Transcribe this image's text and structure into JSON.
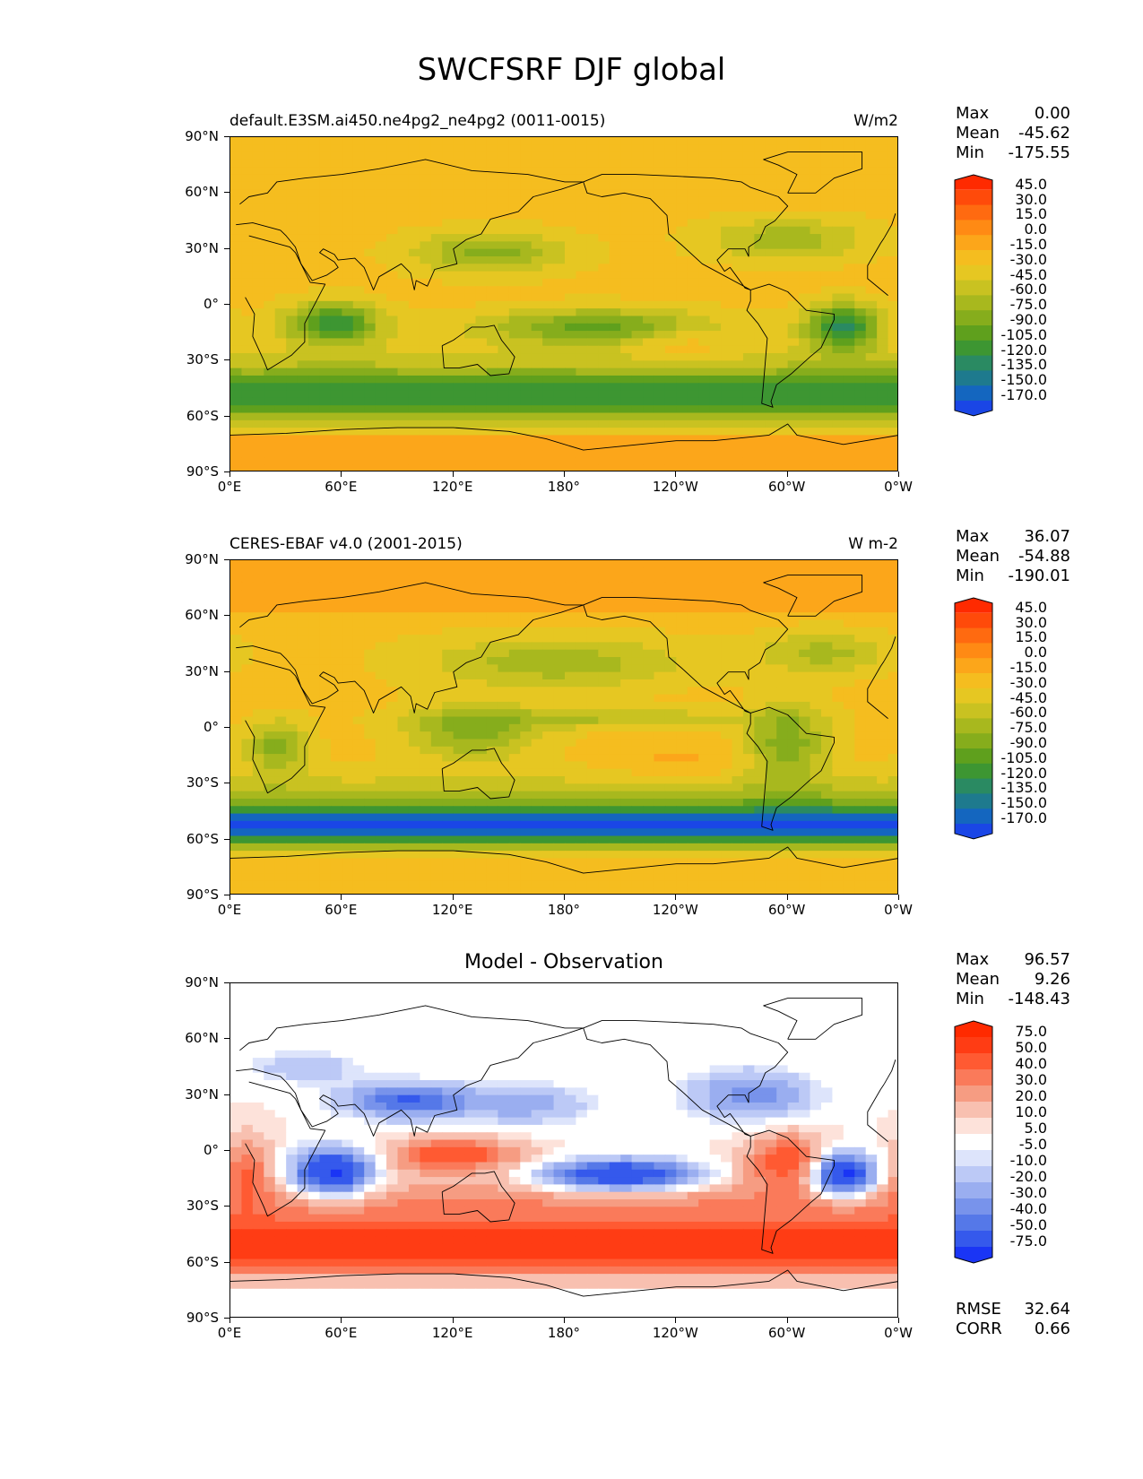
{
  "figure": {
    "title": "SWCFSRF DJF global"
  },
  "x_ticks": [
    "0°E",
    "60°E",
    "120°E",
    "180°",
    "120°W",
    "60°W",
    "0°W"
  ],
  "y_ticks": [
    "90°N",
    "60°N",
    "30°N",
    "0°",
    "30°S",
    "60°S",
    "90°S"
  ],
  "panels": [
    {
      "left_title": "default.E3SM.ai450.ne4pg2_ne4pg2 (0011-0015)",
      "right_title": "W/m2",
      "center_title": "",
      "stats": {
        "max_label": "Max",
        "max": "0.00",
        "mean_label": "Mean",
        "mean": "-45.62",
        "min_label": "Min",
        "min": "-175.55"
      },
      "colorbar": {
        "labels": [
          "45.0",
          "30.0",
          "15.0",
          "0.0",
          "-15.0",
          "-30.0",
          "-45.0",
          "-60.0",
          "-75.0",
          "-90.0",
          "-105.0",
          "-120.0",
          "-135.0",
          "-150.0",
          "-170.0"
        ],
        "colors": [
          "#ff2a00",
          "#ff4a0a",
          "#ff6a10",
          "#ff8a14",
          "#fca61a",
          "#f5bd1f",
          "#e6c722",
          "#c9c221",
          "#a8b81e",
          "#86ad1c",
          "#5fa01d",
          "#3d9632",
          "#2a8a62",
          "#1e7a8e",
          "#1466bf",
          "#1a46e6"
        ]
      }
    },
    {
      "left_title": "CERES-EBAF v4.0 (2001-2015)",
      "right_title": "W m-2",
      "center_title": "",
      "stats": {
        "max_label": "Max",
        "max": "36.07",
        "mean_label": "Mean",
        "mean": "-54.88",
        "min_label": "Min",
        "min": "-190.01"
      },
      "colorbar": {
        "labels": [
          "45.0",
          "30.0",
          "15.0",
          "0.0",
          "-15.0",
          "-30.0",
          "-45.0",
          "-60.0",
          "-75.0",
          "-90.0",
          "-105.0",
          "-120.0",
          "-135.0",
          "-150.0",
          "-170.0"
        ],
        "colors": [
          "#ff2a00",
          "#ff4a0a",
          "#ff6a10",
          "#ff8a14",
          "#fca61a",
          "#f5bd1f",
          "#e6c722",
          "#c9c221",
          "#a8b81e",
          "#86ad1c",
          "#5fa01d",
          "#3d9632",
          "#2a8a62",
          "#1e7a8e",
          "#1466bf",
          "#1a46e6"
        ]
      }
    },
    {
      "left_title": "",
      "right_title": "",
      "center_title": "Model - Observation",
      "stats": {
        "max_label": "Max",
        "max": "96.57",
        "mean_label": "Mean",
        "mean": "9.26",
        "min_label": "Min",
        "min": "-148.43"
      },
      "extra_stats": {
        "rmse_label": "RMSE",
        "rmse": "32.64",
        "corr_label": "CORR",
        "corr": "0.66"
      },
      "colorbar": {
        "labels": [
          "75.0",
          "50.0",
          "40.0",
          "30.0",
          "20.0",
          "10.0",
          "5.0",
          "-5.0",
          "-10.0",
          "-20.0",
          "-30.0",
          "-40.0",
          "-50.0",
          "-75.0"
        ],
        "colors": [
          "#ff2a00",
          "#ff3c14",
          "#ff5a32",
          "#fa7a5a",
          "#f69c82",
          "#f8c0b0",
          "#fde2da",
          "#ffffff",
          "#dde4fb",
          "#bcc9f6",
          "#9aaef0",
          "#7893eb",
          "#5578e8",
          "#3559ec",
          "#1a35f5"
        ]
      }
    }
  ],
  "chart_data": [
    {
      "type": "heatmap",
      "title": "default.E3SM.ai450.ne4pg2_ne4pg2 (0011-0015)",
      "units": "W/m2",
      "x_range": [
        0,
        360
      ],
      "y_range": [
        -90,
        90
      ],
      "stats": {
        "max": 0.0,
        "mean": -45.62,
        "min": -175.55
      },
      "levels": [
        -170,
        -150,
        -135,
        -120,
        -105,
        -90,
        -75,
        -60,
        -45,
        -30,
        -15,
        0,
        15,
        30,
        45
      ],
      "features": [
        {
          "name": "southern ocean band",
          "lat_center": -52,
          "value": -100
        },
        {
          "name": "south atlantic minimum",
          "lon": 330,
          "lat": -12,
          "value": -160
        },
        {
          "name": "indian ocean minimum",
          "lon": 55,
          "lat": -10,
          "value": -140
        }
      ]
    },
    {
      "type": "heatmap",
      "title": "CERES-EBAF v4.0 (2001-2015)",
      "units": "W m-2",
      "x_range": [
        0,
        360
      ],
      "y_range": [
        -90,
        90
      ],
      "stats": {
        "max": 36.07,
        "mean": -54.88,
        "min": -190.01
      },
      "levels": [
        -170,
        -150,
        -135,
        -120,
        -105,
        -90,
        -75,
        -60,
        -45,
        -30,
        -15,
        0,
        15,
        30,
        45
      ],
      "features": [
        {
          "name": "southern ocean band",
          "lat_center": -52,
          "value": -155
        },
        {
          "name": "amazon minimum",
          "lon": 300,
          "lat": -5,
          "value": -100
        }
      ]
    },
    {
      "type": "heatmap",
      "title": "Model - Observation",
      "x_range": [
        0,
        360
      ],
      "y_range": [
        -90,
        90
      ],
      "stats": {
        "max": 96.57,
        "mean": 9.26,
        "min": -148.43,
        "rmse": 32.64,
        "corr": 0.66
      },
      "levels": [
        -75,
        -50,
        -40,
        -30,
        -20,
        -10,
        -5,
        5,
        10,
        20,
        30,
        40,
        50,
        75
      ],
      "features": [
        {
          "name": "southern ocean positive band",
          "lat_center": -52,
          "value": 60
        },
        {
          "name": "indian ocean negative",
          "lon": 55,
          "lat": -12,
          "value": -80
        },
        {
          "name": "pacific negative",
          "lon": 210,
          "lat": -15,
          "value": -75
        },
        {
          "name": "atlantic negative",
          "lon": 330,
          "lat": -15,
          "value": -80
        }
      ]
    }
  ]
}
